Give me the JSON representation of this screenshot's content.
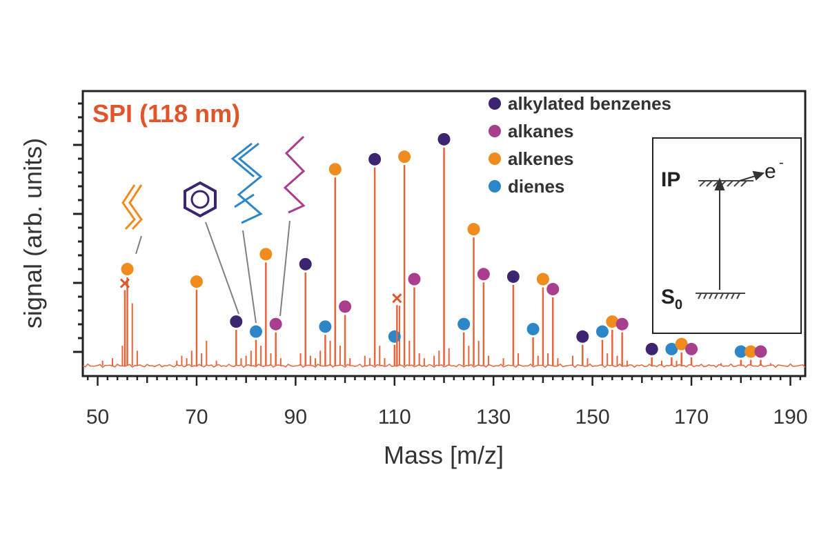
{
  "chart_data": {
    "type": "bar",
    "subtype": "mass-spectrum",
    "title": "SPI (118 nm)",
    "xlabel": "Mass [m/z]",
    "ylabel": "signal (arb. units)",
    "xlim": [
      47,
      193
    ],
    "ylim": [
      0,
      1.0
    ],
    "x_ticks": [
      50,
      70,
      90,
      110,
      130,
      150,
      170,
      190
    ],
    "grid": false,
    "line_color": "#e8643a",
    "title_color": "#e0552a",
    "legend_position": "top-right",
    "legend": [
      {
        "name": "alkylated benzenes",
        "color": "#3c2470"
      },
      {
        "name": "alkanes",
        "color": "#a83e8c"
      },
      {
        "name": "alkenes",
        "color": "#f08c1e"
      },
      {
        "name": "dienes",
        "color": "#2c86c8"
      }
    ],
    "peaks": [
      {
        "x": 56,
        "y": 0.37,
        "class": "alkenes"
      },
      {
        "x": 70,
        "y": 0.32,
        "class": "alkenes"
      },
      {
        "x": 78,
        "y": 0.16,
        "class": "alkylated benzenes"
      },
      {
        "x": 82,
        "y": 0.12,
        "class": "dienes"
      },
      {
        "x": 84,
        "y": 0.43,
        "class": "alkenes"
      },
      {
        "x": 86,
        "y": 0.15,
        "class": "alkanes"
      },
      {
        "x": 92,
        "y": 0.39,
        "class": "alkylated benzenes"
      },
      {
        "x": 96,
        "y": 0.14,
        "class": "dienes"
      },
      {
        "x": 98,
        "y": 0.77,
        "class": "alkenes"
      },
      {
        "x": 100,
        "y": 0.22,
        "class": "alkanes"
      },
      {
        "x": 106,
        "y": 0.81,
        "class": "alkylated benzenes"
      },
      {
        "x": 110,
        "y": 0.1,
        "class": "dienes"
      },
      {
        "x": 112,
        "y": 0.82,
        "class": "alkenes"
      },
      {
        "x": 114,
        "y": 0.33,
        "class": "alkanes"
      },
      {
        "x": 120,
        "y": 0.89,
        "class": "alkylated benzenes"
      },
      {
        "x": 124,
        "y": 0.15,
        "class": "dienes"
      },
      {
        "x": 126,
        "y": 0.53,
        "class": "alkenes"
      },
      {
        "x": 128,
        "y": 0.35,
        "class": "alkanes"
      },
      {
        "x": 134,
        "y": 0.34,
        "class": "alkylated benzenes"
      },
      {
        "x": 138,
        "y": 0.13,
        "class": "dienes"
      },
      {
        "x": 140,
        "y": 0.33,
        "class": "alkenes"
      },
      {
        "x": 142,
        "y": 0.29,
        "class": "alkanes"
      },
      {
        "x": 148,
        "y": 0.1,
        "class": "alkylated benzenes"
      },
      {
        "x": 152,
        "y": 0.12,
        "class": "dienes"
      },
      {
        "x": 154,
        "y": 0.16,
        "class": "alkenes"
      },
      {
        "x": 156,
        "y": 0.15,
        "class": "alkanes"
      },
      {
        "x": 162,
        "y": 0.05,
        "class": "alkylated benzenes"
      },
      {
        "x": 166,
        "y": 0.05,
        "class": "dienes"
      },
      {
        "x": 168,
        "y": 0.07,
        "class": "alkenes"
      },
      {
        "x": 170,
        "y": 0.05,
        "class": "alkanes"
      },
      {
        "x": 180,
        "y": 0.04,
        "class": "dienes"
      },
      {
        "x": 182,
        "y": 0.04,
        "class": "alkenes"
      },
      {
        "x": 184,
        "y": 0.04,
        "class": "alkanes"
      }
    ],
    "minor_peaks": [
      {
        "x": 51,
        "y": 0.02
      },
      {
        "x": 53,
        "y": 0.03
      },
      {
        "x": 55,
        "y": 0.08
      },
      {
        "x": 57,
        "y": 0.25
      },
      {
        "x": 58,
        "y": 0.06
      },
      {
        "x": 66,
        "y": 0.02
      },
      {
        "x": 67,
        "y": 0.04
      },
      {
        "x": 68,
        "y": 0.03
      },
      {
        "x": 69,
        "y": 0.06
      },
      {
        "x": 71,
        "y": 0.05
      },
      {
        "x": 72,
        "y": 0.1
      },
      {
        "x": 74,
        "y": 0.02
      },
      {
        "x": 79,
        "y": 0.03
      },
      {
        "x": 80,
        "y": 0.04
      },
      {
        "x": 81,
        "y": 0.06
      },
      {
        "x": 83,
        "y": 0.08
      },
      {
        "x": 85,
        "y": 0.05
      },
      {
        "x": 87,
        "y": 0.03
      },
      {
        "x": 91,
        "y": 0.05
      },
      {
        "x": 93,
        "y": 0.04
      },
      {
        "x": 94,
        "y": 0.03
      },
      {
        "x": 95,
        "y": 0.06
      },
      {
        "x": 97,
        "y": 0.1
      },
      {
        "x": 99,
        "y": 0.08
      },
      {
        "x": 101,
        "y": 0.03
      },
      {
        "x": 104,
        "y": 0.04
      },
      {
        "x": 105,
        "y": 0.03
      },
      {
        "x": 107,
        "y": 0.08
      },
      {
        "x": 108,
        "y": 0.03
      },
      {
        "x": 111,
        "y": 0.24
      },
      {
        "x": 113,
        "y": 0.1
      },
      {
        "x": 115,
        "y": 0.05
      },
      {
        "x": 116,
        "y": 0.03
      },
      {
        "x": 118,
        "y": 0.04
      },
      {
        "x": 119,
        "y": 0.06
      },
      {
        "x": 121,
        "y": 0.07
      },
      {
        "x": 125,
        "y": 0.08
      },
      {
        "x": 127,
        "y": 0.1
      },
      {
        "x": 129,
        "y": 0.04
      },
      {
        "x": 132,
        "y": 0.03
      },
      {
        "x": 135,
        "y": 0.05
      },
      {
        "x": 139,
        "y": 0.04
      },
      {
        "x": 141,
        "y": 0.05
      },
      {
        "x": 143,
        "y": 0.03
      },
      {
        "x": 146,
        "y": 0.04
      },
      {
        "x": 149,
        "y": 0.03
      },
      {
        "x": 153,
        "y": 0.05
      },
      {
        "x": 155,
        "y": 0.04
      },
      {
        "x": 157,
        "y": 0.02
      },
      {
        "x": 164,
        "y": 0.02
      },
      {
        "x": 167,
        "y": 0.02
      },
      {
        "x": 176,
        "y": 0.01
      },
      {
        "x": 186,
        "y": 0.01
      }
    ],
    "marked_peaks": [
      {
        "x": 55.5,
        "y": 0.33,
        "marker": "x"
      },
      {
        "x": 110.5,
        "y": 0.27,
        "marker": "x"
      }
    ],
    "annotations": [
      {
        "name": "butene-structure",
        "x": 56,
        "color": "#f08c1e"
      },
      {
        "name": "benzene-structure",
        "x": 78,
        "color": "#3c2470"
      },
      {
        "name": "hexadiene-structure",
        "x": 82,
        "color": "#2c86c8"
      },
      {
        "name": "hexane-structure",
        "x": 86,
        "color": "#a83e8c"
      }
    ],
    "inset": {
      "top_label": "IP",
      "electron_label": "e",
      "electron_charge": "-",
      "bottom_label": "S",
      "bottom_subscript": "0"
    }
  }
}
